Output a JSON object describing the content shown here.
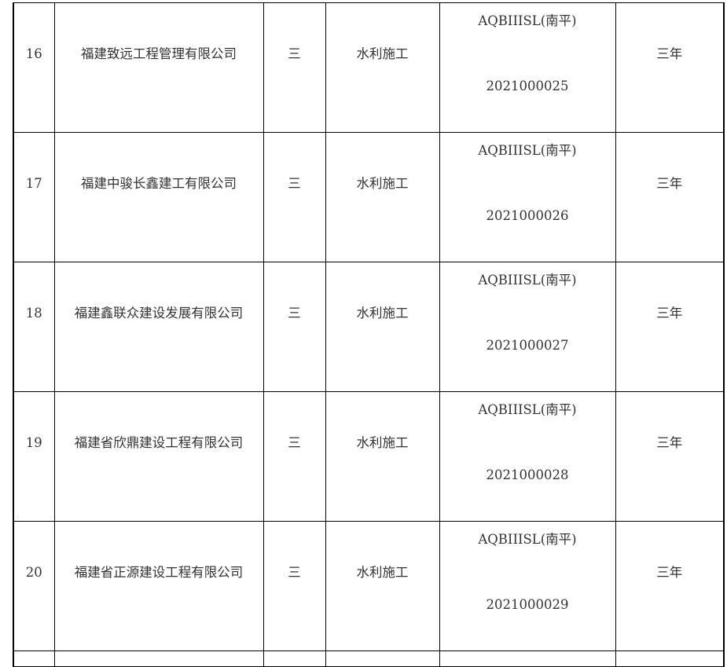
{
  "rows": [
    {
      "no": "16",
      "company": "福建致远工程管理有限公司",
      "level": "三",
      "type": "水利施工",
      "code_line1": "AQBIIISL(南平)",
      "code_line2": "2021000025",
      "validity": "三年"
    },
    {
      "no": "17",
      "company": "福建中骏长鑫建工有限公司",
      "level": "三",
      "type": "水利施工",
      "code_line1": "AQBIIISL(南平)",
      "code_line2": "2021000026",
      "validity": "三年"
    },
    {
      "no": "18",
      "company": "福建鑫联众建设发展有限公司",
      "level": "三",
      "type": "水利施工",
      "code_line1": "AQBIIISL(南平)",
      "code_line2": "2021000027",
      "validity": "三年"
    },
    {
      "no": "19",
      "company": "福建省欣鼎建设工程有限公司",
      "level": "三",
      "type": "水利施工",
      "code_line1": "AQBIIISL(南平)",
      "code_line2": "2021000028",
      "validity": "三年"
    },
    {
      "no": "20",
      "company": "福建省正源建设工程有限公司",
      "level": "三",
      "type": "水利施工",
      "code_line1": "AQBIIISL(南平)",
      "code_line2": "2021000029",
      "validity": "三年"
    }
  ]
}
